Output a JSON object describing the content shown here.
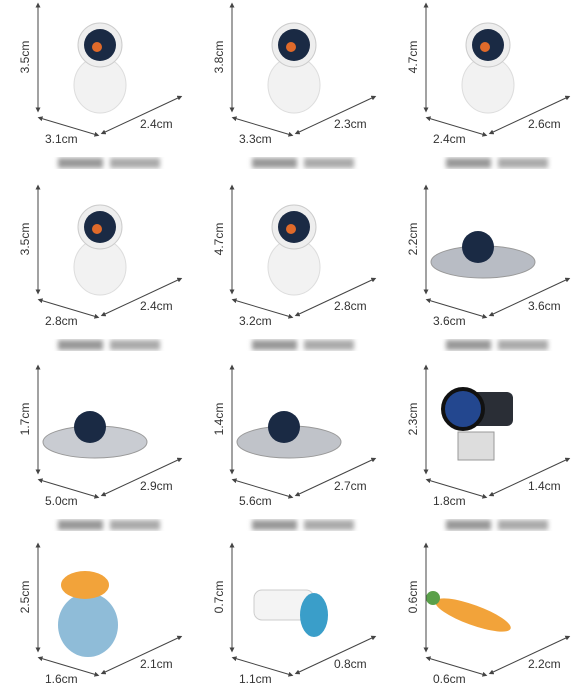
{
  "items": [
    {
      "height": "3.5cm",
      "width": "3.1cm",
      "depth": "2.4cm"
    },
    {
      "height": "3.8cm",
      "width": "3.3cm",
      "depth": "2.3cm"
    },
    {
      "height": "4.7cm",
      "width": "2.4cm",
      "depth": "2.6cm"
    },
    {
      "height": "3.5cm",
      "width": "2.8cm",
      "depth": "2.4cm"
    },
    {
      "height": "4.7cm",
      "width": "3.2cm",
      "depth": "2.8cm"
    },
    {
      "height": "2.2cm",
      "width": "3.6cm",
      "depth": "3.6cm"
    },
    {
      "height": "1.7cm",
      "width": "5.0cm",
      "depth": "2.9cm"
    },
    {
      "height": "1.4cm",
      "width": "5.6cm",
      "depth": "2.7cm"
    },
    {
      "height": "2.3cm",
      "width": "1.8cm",
      "depth": "1.4cm"
    },
    {
      "height": "2.5cm",
      "width": "1.6cm",
      "depth": "2.1cm"
    },
    {
      "height": "0.7cm",
      "width": "1.1cm",
      "depth": "0.8cm"
    },
    {
      "height": "0.6cm",
      "width": "0.6cm",
      "depth": "2.2cm"
    }
  ]
}
